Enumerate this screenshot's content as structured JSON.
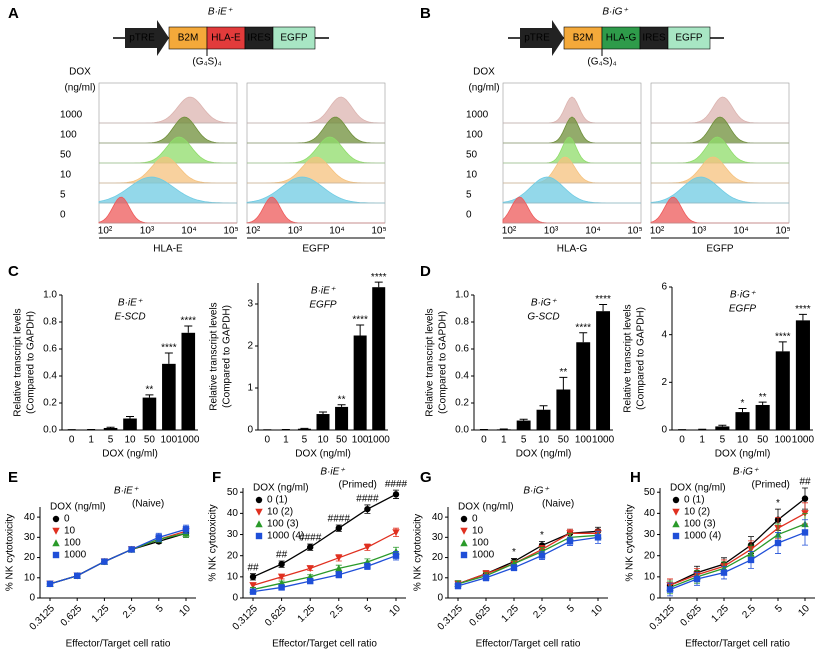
{
  "panel_labels": [
    "A",
    "B",
    "C",
    "D",
    "E",
    "F",
    "G",
    "H"
  ],
  "constructs": [
    {
      "title": "B·iE⁺",
      "parts": [
        "pTRE",
        "B2M",
        "HLA-E",
        "IRES",
        "EGFP"
      ],
      "linker": "(G₄S)₄"
    },
    {
      "title": "B·iG⁺",
      "parts": [
        "pTRE",
        "B2M",
        "HLA-G",
        "IRES",
        "EGFP"
      ],
      "linker": "(G₄S)₄"
    }
  ],
  "flow": [
    {
      "dox_label": [
        "DOX",
        "(ng/ml)"
      ],
      "doses": [
        "1000",
        "100",
        "50",
        "10",
        "5",
        "0"
      ],
      "xlabels": [
        "HLA-E",
        "EGFP"
      ],
      "xticks": [
        "10²",
        "10³",
        "10⁴",
        "10⁵"
      ]
    },
    {
      "dox_label": [
        "DOX",
        "(ng/ml)"
      ],
      "doses": [
        "1000",
        "100",
        "50",
        "10",
        "5",
        "0"
      ],
      "xlabels": [
        "HLA-G",
        "EGFP"
      ],
      "xticks": [
        "10²",
        "10³",
        "10⁴",
        "10⁵"
      ]
    }
  ],
  "chart_data": [
    {
      "type": "bar",
      "title": "B·iE⁺",
      "subtitle": "E-SCD",
      "xlabel": "DOX (ng/ml)",
      "ylabel": [
        "Relative transcript levels",
        "(Compared to GAPDH)"
      ],
      "categories": [
        "0",
        "1",
        "5",
        "10",
        "50",
        "100",
        "1000"
      ],
      "values": [
        0.002,
        0.003,
        0.015,
        0.085,
        0.24,
        0.49,
        0.72
      ],
      "errors": [
        0.001,
        0.001,
        0.005,
        0.015,
        0.02,
        0.08,
        0.05
      ],
      "annotations": [
        null,
        null,
        null,
        null,
        "**",
        "****",
        "****"
      ],
      "color": "#000000",
      "ylim": [
        0,
        1
      ],
      "yticks": [
        {
          "value": 0,
          "label": "0.0"
        },
        0.2,
        0.4,
        0.6,
        0.8,
        {
          "value": 1,
          "label": "1.0"
        }
      ]
    },
    {
      "type": "bar",
      "title": "B·iE⁺",
      "subtitle": "EGFP",
      "xlabel": "DOX (ng/ml)",
      "ylabel": [
        "Relative transcript levels",
        "(Compared to GAPDH)"
      ],
      "categories": [
        "0",
        "1",
        "5",
        "10",
        "50",
        "100",
        "1000"
      ],
      "values": [
        0.005,
        0.01,
        0.03,
        0.38,
        0.55,
        2.25,
        3.4
      ],
      "errors": [
        0.002,
        0.003,
        0.01,
        0.05,
        0.05,
        0.25,
        0.12
      ],
      "annotations": [
        null,
        null,
        null,
        null,
        "**",
        "****",
        "****"
      ],
      "color": "#000000",
      "ylim": [
        0,
        3.5
      ],
      "yticks": [
        0,
        1,
        2,
        3
      ]
    },
    {
      "type": "bar",
      "title": "B·iG⁺",
      "subtitle": "G-SCD",
      "xlabel": "DOX (ng/ml)",
      "ylabel": [
        "Relative transcript levels",
        "(Compared to GAPDH)"
      ],
      "categories": [
        "0",
        "1",
        "5",
        "10",
        "50",
        "100",
        "1000"
      ],
      "values": [
        0.003,
        0.005,
        0.07,
        0.15,
        0.3,
        0.65,
        0.88
      ],
      "errors": [
        0.001,
        0.002,
        0.01,
        0.03,
        0.09,
        0.07,
        0.05
      ],
      "annotations": [
        null,
        null,
        null,
        null,
        "**",
        "****",
        "****"
      ],
      "color": "#000000",
      "ylim": [
        0,
        1
      ],
      "yticks": [
        {
          "value": 0,
          "label": "0.0"
        },
        0.2,
        0.4,
        0.6,
        0.8,
        {
          "value": 1,
          "label": "1.0"
        }
      ]
    },
    {
      "type": "bar",
      "title": "B·iG⁺",
      "subtitle": "EGFP",
      "xlabel": "DOX (ng/ml)",
      "ylabel": [
        "Relative transcript levels",
        "(Compared to GAPDH)"
      ],
      "categories": [
        "0",
        "1",
        "5",
        "10",
        "50",
        "100",
        "1000"
      ],
      "values": [
        0.01,
        0.02,
        0.15,
        0.75,
        1.05,
        3.3,
        4.6
      ],
      "errors": [
        0.005,
        0.01,
        0.05,
        0.15,
        0.12,
        0.4,
        0.25
      ],
      "annotations": [
        null,
        null,
        null,
        "*",
        "**",
        "****",
        "****"
      ],
      "color": "#000000",
      "ylim": [
        0,
        6
      ],
      "yticks": [
        0,
        2,
        4,
        6
      ]
    },
    {
      "type": "line",
      "title": "B·iE⁺",
      "subtitle": "(Naive)",
      "legend_title": "DOX (ng/ml)",
      "xlabel": "Effector/Target cell ratio",
      "ylabel": "% NK cytotoxicity",
      "categories": [
        "0.3125",
        "0.625",
        "1.25",
        "2.5",
        "5",
        "10"
      ],
      "annotations": [
        null,
        null,
        null,
        null,
        null,
        null
      ],
      "ylim": [
        0,
        45
      ],
      "yticks": [
        0,
        10,
        20,
        30,
        40
      ],
      "series": [
        {
          "name": "0",
          "color": "#000000",
          "marker": "circle",
          "values": [
            7,
            11,
            18,
            24,
            28,
            32
          ],
          "errors": [
            1,
            1,
            1,
            1,
            1,
            2
          ]
        },
        {
          "name": "10",
          "color": "#e03020",
          "marker": "down",
          "values": [
            7,
            11,
            18,
            24,
            29,
            33
          ],
          "errors": [
            1,
            1,
            1,
            1,
            1,
            2
          ]
        },
        {
          "name": "100",
          "color": "#2a9a2a",
          "marker": "up",
          "values": [
            7,
            11,
            18,
            24,
            29,
            32
          ],
          "errors": [
            1,
            1,
            1,
            1,
            1,
            2
          ]
        },
        {
          "name": "1000",
          "color": "#1f4fd8",
          "marker": "square",
          "values": [
            7,
            11,
            18,
            24,
            30,
            34
          ],
          "errors": [
            1,
            1,
            1,
            1,
            2,
            2
          ]
        }
      ]
    },
    {
      "type": "line",
      "title": "B·iE⁺",
      "subtitle": "(Primed)",
      "legend_title": "DOX (ng/ml)",
      "xlabel": "Effector/Target cell ratio",
      "ylabel": "% NK cytotoxicity",
      "categories": [
        "0.3125",
        "0.625",
        "1.25",
        "2.5",
        "5",
        "10"
      ],
      "annotations": [
        "##",
        "##",
        "####",
        "####",
        "####",
        "####"
      ],
      "ylim": [
        0,
        52
      ],
      "yticks": [
        0,
        10,
        20,
        30,
        40,
        50
      ],
      "series": [
        {
          "name": "0 (1)",
          "color": "#000000",
          "marker": "circle",
          "values": [
            10,
            16,
            24,
            33,
            42,
            49
          ],
          "errors": [
            1.5,
            1.5,
            1.5,
            1.5,
            2,
            2
          ]
        },
        {
          "name": "10 (2)",
          "color": "#e03020",
          "marker": "down",
          "values": [
            6,
            10,
            14,
            19,
            24,
            31
          ],
          "errors": [
            1,
            1,
            1,
            1.5,
            1.5,
            2
          ]
        },
        {
          "name": "100 (3)",
          "color": "#2a9a2a",
          "marker": "up",
          "values": [
            4,
            7,
            10,
            14,
            17,
            22
          ],
          "errors": [
            1,
            1,
            1,
            1.5,
            1.5,
            2
          ]
        },
        {
          "name": "1000 (4)",
          "color": "#1f4fd8",
          "marker": "square",
          "values": [
            3,
            5,
            8,
            11,
            15,
            20
          ],
          "errors": [
            1,
            1,
            1,
            1.5,
            1.5,
            2
          ]
        }
      ]
    },
    {
      "type": "line",
      "title": "B·iG⁺",
      "subtitle": "(Naive)",
      "legend_title": "DOX (ng/ml)",
      "xlabel": "Effector/Target cell ratio",
      "ylabel": "% NK cytotoxicity",
      "categories": [
        "0.3125",
        "0.625",
        "1.25",
        "2.5",
        "5",
        "10"
      ],
      "annotations": [
        null,
        null,
        "*",
        "*",
        null,
        null
      ],
      "ylim": [
        0,
        45
      ],
      "yticks": [
        0,
        10,
        20,
        30,
        40
      ],
      "series": [
        {
          "name": "0",
          "color": "#000000",
          "marker": "circle",
          "values": [
            7,
            12,
            18,
            26,
            32,
            33
          ],
          "errors": [
            1.5,
            1.5,
            1.5,
            2,
            2,
            2
          ]
        },
        {
          "name": "10",
          "color": "#e03020",
          "marker": "down",
          "values": [
            7,
            12,
            17,
            24,
            32,
            32
          ],
          "errors": [
            1.5,
            1.5,
            1.5,
            2,
            2,
            2
          ]
        },
        {
          "name": "100",
          "color": "#2a9a2a",
          "marker": "up",
          "values": [
            7,
            11,
            17,
            23,
            30,
            31
          ],
          "errors": [
            1.5,
            1.5,
            1.5,
            2,
            2,
            2
          ]
        },
        {
          "name": "1000",
          "color": "#1f4fd8",
          "marker": "square",
          "values": [
            6,
            10,
            15,
            21,
            28,
            30
          ],
          "errors": [
            1.5,
            1.5,
            1.5,
            2,
            2,
            3
          ]
        }
      ]
    },
    {
      "type": "line",
      "title": "B·iG⁺",
      "subtitle": "(Primed)",
      "legend_title": "DOX (ng/ml)",
      "xlabel": "Effector/Target cell ratio",
      "ylabel": "% NK cytotoxicity",
      "categories": [
        "0.3125",
        "0.625",
        "1.25",
        "2.5",
        "5",
        "10"
      ],
      "annotations": [
        null,
        null,
        null,
        null,
        "*",
        "##"
      ],
      "ylim": [
        0,
        52
      ],
      "yticks": [
        0,
        10,
        20,
        30,
        40,
        50
      ],
      "series": [
        {
          "name": "0 (1)",
          "color": "#000000",
          "marker": "circle",
          "values": [
            6,
            12,
            16,
            25,
            37,
            47
          ],
          "errors": [
            3,
            3,
            3,
            4,
            5,
            5
          ]
        },
        {
          "name": "10 (2)",
          "color": "#e03020",
          "marker": "down",
          "values": [
            6,
            11,
            15,
            23,
            33,
            40
          ],
          "errors": [
            3,
            3,
            3,
            4,
            5,
            5
          ]
        },
        {
          "name": "100 (3)",
          "color": "#2a9a2a",
          "marker": "up",
          "values": [
            5,
            10,
            14,
            21,
            30,
            35
          ],
          "errors": [
            3,
            3,
            3,
            4,
            5,
            5
          ]
        },
        {
          "name": "1000 (4)",
          "color": "#1f4fd8",
          "marker": "square",
          "values": [
            4,
            9,
            12,
            18,
            26,
            31
          ],
          "errors": [
            3,
            3,
            3,
            4,
            5,
            6
          ]
        }
      ]
    }
  ]
}
